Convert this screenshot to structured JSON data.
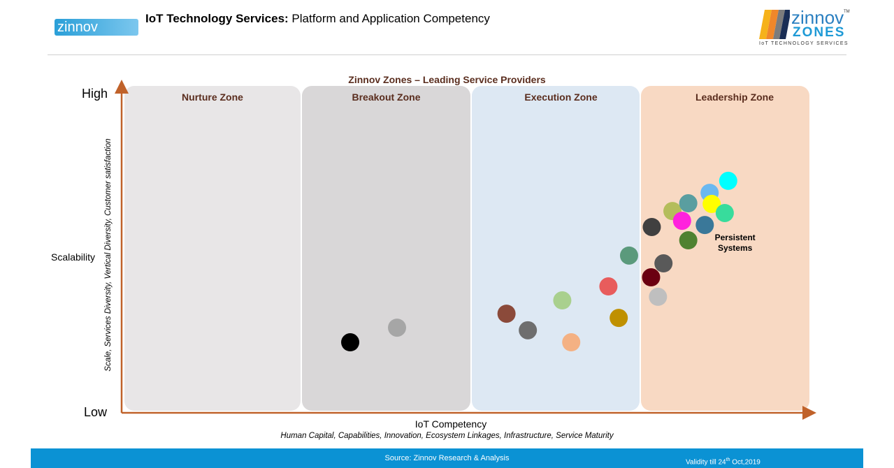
{
  "header": {
    "logo_text": "zinnov",
    "title_bold": "IoT Technology Services:",
    "title_rest": " Platform and Application Competency",
    "brand_logo": {
      "line1": "zinnov",
      "line2": "ZONES",
      "line3": "IoT TECHNOLOGY SERVICES",
      "tm": "TM"
    }
  },
  "chart_data": {
    "type": "scatter",
    "title": "Zinnov Zones – Leading Service Providers",
    "xlabel": "IoT Competency",
    "xsublabel": "Human Capital, Capabilities, Innovation, Ecosystem Linkages, Infrastructure, Service Maturity",
    "ylabel": "Scalability",
    "ysublabel": "Scale, Services Diversity, Vertical Diversity, Customer satisfaction",
    "y_ticks": {
      "high": "High",
      "low": "Low"
    },
    "xlim": [
      0,
      100
    ],
    "ylim": [
      0,
      100
    ],
    "grid": false,
    "zones": [
      {
        "name": "Nurture Zone",
        "color": "#e8e6e7"
      },
      {
        "name": "Breakout Zone",
        "color": "#d9d7d8"
      },
      {
        "name": "Execution Zone",
        "color": "#dde8f3"
      },
      {
        "name": "Leadership Zone",
        "color": "#f8d9c3"
      }
    ],
    "points": [
      {
        "x": 33.1,
        "y": 21.5,
        "color": "#000000"
      },
      {
        "x": 39.9,
        "y": 26.0,
        "color": "#a6a6a6"
      },
      {
        "x": 55.8,
        "y": 30.3,
        "color": "#8b4a3a"
      },
      {
        "x": 58.9,
        "y": 25.2,
        "color": "#6e6e6e"
      },
      {
        "x": 63.9,
        "y": 34.4,
        "color": "#a9d08e"
      },
      {
        "x": 65.2,
        "y": 21.5,
        "color": "#f4b183"
      },
      {
        "x": 70.6,
        "y": 38.7,
        "color": "#e85c5c"
      },
      {
        "x": 72.1,
        "y": 29.0,
        "color": "#bf9000"
      },
      {
        "x": 73.6,
        "y": 48.2,
        "color": "#5b9a7c"
      },
      {
        "x": 76.9,
        "y": 57.0,
        "color": "#404040"
      },
      {
        "x": 78.6,
        "y": 45.8,
        "color": "#595959"
      },
      {
        "x": 76.8,
        "y": 41.5,
        "color": "#6b0011"
      },
      {
        "x": 77.8,
        "y": 35.5,
        "color": "#bfbfbf"
      },
      {
        "x": 82.2,
        "y": 52.9,
        "color": "#4f8230"
      },
      {
        "x": 79.9,
        "y": 61.9,
        "color": "#b4bd5b"
      },
      {
        "x": 81.3,
        "y": 58.9,
        "color": "#ff22dd"
      },
      {
        "x": 82.2,
        "y": 64.3,
        "color": "#5a9ea0"
      },
      {
        "x": 84.6,
        "y": 57.6,
        "color": "#3a7899"
      },
      {
        "x": 85.3,
        "y": 67.5,
        "color": "#6ab8f0"
      },
      {
        "x": 85.6,
        "y": 64.1,
        "color": "#ffff00"
      },
      {
        "x": 87.5,
        "y": 61.3,
        "color": "#38dc9c"
      },
      {
        "x": 88.0,
        "y": 71.2,
        "color": "#00ffff"
      }
    ],
    "annotations": [
      {
        "text": "Persistent Systems",
        "x": 89,
        "y": 52
      }
    ]
  },
  "footer": {
    "source": "Source: Zinnov  Research & Analysis",
    "validity_prefix": "Validity till 24",
    "validity_sup": "th",
    "validity_suffix": " Oct,2019"
  }
}
